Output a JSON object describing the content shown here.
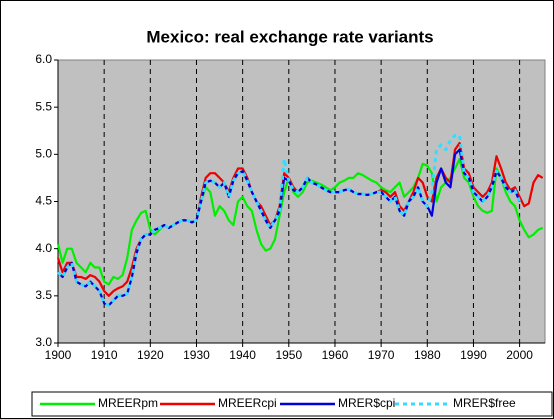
{
  "chart_data": {
    "type": "line",
    "title": "Mexico: real exchange rate variants",
    "x": [
      1900,
      1901,
      1902,
      1903,
      1904,
      1905,
      1906,
      1907,
      1908,
      1909,
      1910,
      1911,
      1912,
      1913,
      1914,
      1915,
      1916,
      1917,
      1918,
      1919,
      1920,
      1921,
      1922,
      1923,
      1924,
      1925,
      1926,
      1927,
      1928,
      1929,
      1930,
      1931,
      1932,
      1933,
      1934,
      1935,
      1936,
      1937,
      1938,
      1939,
      1940,
      1941,
      1942,
      1943,
      1944,
      1945,
      1946,
      1947,
      1948,
      1949,
      1950,
      1951,
      1952,
      1953,
      1954,
      1955,
      1956,
      1957,
      1958,
      1959,
      1960,
      1961,
      1962,
      1963,
      1964,
      1965,
      1966,
      1967,
      1968,
      1969,
      1970,
      1971,
      1972,
      1973,
      1974,
      1975,
      1976,
      1977,
      1978,
      1979,
      1980,
      1981,
      1982,
      1983,
      1984,
      1985,
      1986,
      1987,
      1988,
      1989,
      1990,
      1991,
      1992,
      1993,
      1994,
      1995,
      1996,
      1997,
      1998,
      1999,
      2000,
      2001,
      2002,
      2003,
      2004,
      2005
    ],
    "series": [
      {
        "name": "MREERpm",
        "color": "#00ee00",
        "dashed": false,
        "values": [
          4.05,
          3.85,
          4.0,
          4.0,
          3.85,
          3.8,
          3.75,
          3.85,
          3.8,
          3.8,
          3.65,
          3.62,
          3.7,
          3.68,
          3.72,
          3.9,
          4.2,
          4.3,
          4.38,
          4.4,
          4.2,
          4.15,
          4.2,
          4.25,
          4.22,
          4.25,
          4.28,
          4.3,
          4.3,
          4.28,
          4.3,
          4.5,
          4.65,
          4.6,
          4.35,
          4.45,
          4.4,
          4.3,
          4.25,
          4.5,
          4.55,
          4.45,
          4.4,
          4.2,
          4.05,
          3.98,
          4.0,
          4.1,
          4.35,
          4.6,
          4.75,
          4.6,
          4.55,
          4.6,
          4.7,
          4.72,
          4.7,
          4.68,
          4.65,
          4.62,
          4.65,
          4.7,
          4.72,
          4.75,
          4.75,
          4.8,
          4.78,
          4.75,
          4.72,
          4.7,
          4.65,
          4.62,
          4.6,
          4.65,
          4.7,
          4.55,
          4.6,
          4.65,
          4.75,
          4.9,
          4.88,
          4.8,
          4.5,
          4.65,
          4.7,
          4.75,
          4.85,
          4.95,
          4.75,
          4.7,
          4.55,
          4.45,
          4.4,
          4.38,
          4.4,
          4.85,
          4.75,
          4.6,
          4.5,
          4.45,
          4.3,
          4.2,
          4.12,
          4.15,
          4.2,
          4.22
        ]
      },
      {
        "name": "MREERcpi",
        "color": "#ee0000",
        "dashed": false,
        "values": [
          3.9,
          3.75,
          3.85,
          3.85,
          3.7,
          3.7,
          3.68,
          3.72,
          3.7,
          3.65,
          3.55,
          3.5,
          3.55,
          3.58,
          3.6,
          3.65,
          3.8,
          4.0,
          4.1,
          4.15,
          4.15,
          4.2,
          4.22,
          4.25,
          4.22,
          4.25,
          4.28,
          4.3,
          4.3,
          4.28,
          4.3,
          4.55,
          4.75,
          4.8,
          4.8,
          4.75,
          4.7,
          4.6,
          4.75,
          4.85,
          4.85,
          4.75,
          4.6,
          4.5,
          4.45,
          4.35,
          4.25,
          4.3,
          4.45,
          4.8,
          4.75,
          4.65,
          4.6,
          4.65,
          4.75,
          4.7,
          4.68,
          4.65,
          4.62,
          4.6,
          4.6,
          4.6,
          4.62,
          4.63,
          4.6,
          4.58,
          4.58,
          4.57,
          4.58,
          4.6,
          4.62,
          4.6,
          4.55,
          4.6,
          4.45,
          4.4,
          4.5,
          4.6,
          4.75,
          4.7,
          4.55,
          4.5,
          4.75,
          4.85,
          4.75,
          4.7,
          5.05,
          5.12,
          4.85,
          4.8,
          4.65,
          4.6,
          4.55,
          4.6,
          4.7,
          4.98,
          4.85,
          4.7,
          4.62,
          4.65,
          4.55,
          4.45,
          4.48,
          4.7,
          4.78,
          4.75
        ]
      },
      {
        "name": "MRER$cpi",
        "color": "#0000dd",
        "dashed": false,
        "values": [
          3.75,
          3.7,
          3.8,
          3.85,
          3.65,
          3.62,
          3.6,
          3.65,
          3.6,
          3.55,
          3.42,
          3.4,
          3.45,
          3.5,
          3.5,
          3.52,
          3.7,
          3.95,
          4.1,
          4.15,
          4.15,
          4.2,
          4.22,
          4.25,
          4.22,
          4.25,
          4.28,
          4.3,
          4.3,
          4.28,
          4.3,
          4.5,
          4.7,
          4.72,
          4.7,
          4.65,
          4.7,
          4.55,
          4.72,
          4.8,
          4.82,
          4.72,
          4.6,
          4.5,
          4.4,
          4.3,
          4.22,
          4.3,
          4.4,
          4.75,
          4.72,
          4.62,
          4.6,
          4.65,
          4.75,
          4.7,
          4.68,
          4.65,
          4.62,
          4.6,
          4.6,
          4.6,
          4.62,
          4.63,
          4.6,
          4.58,
          4.58,
          4.57,
          4.58,
          4.6,
          4.6,
          4.55,
          4.5,
          4.55,
          4.4,
          4.35,
          4.5,
          4.55,
          4.65,
          4.5,
          4.45,
          4.35,
          4.7,
          4.85,
          4.7,
          4.65,
          5.0,
          5.05,
          4.8,
          4.75,
          4.6,
          4.55,
          4.5,
          4.55,
          4.65,
          4.82,
          4.75,
          4.65,
          4.6,
          4.62,
          4.5,
          null,
          null,
          null,
          null,
          null
        ]
      },
      {
        "name": "MRER$free",
        "color": "#33ddff",
        "dashed": true,
        "values": [
          3.75,
          3.7,
          3.8,
          3.85,
          3.65,
          3.62,
          3.6,
          3.65,
          3.6,
          3.55,
          3.42,
          3.4,
          3.45,
          3.5,
          3.5,
          3.52,
          3.7,
          3.95,
          4.1,
          4.15,
          4.15,
          4.2,
          4.22,
          4.25,
          4.22,
          4.25,
          4.28,
          4.3,
          4.3,
          4.28,
          4.3,
          4.5,
          4.7,
          4.72,
          4.7,
          4.65,
          4.7,
          4.55,
          4.72,
          4.8,
          4.82,
          4.72,
          4.6,
          4.5,
          4.4,
          4.3,
          4.22,
          4.3,
          4.4,
          4.95,
          4.72,
          4.62,
          4.6,
          4.65,
          4.75,
          4.7,
          4.68,
          4.65,
          4.62,
          4.6,
          4.6,
          4.6,
          4.62,
          4.63,
          4.6,
          4.58,
          4.58,
          4.57,
          4.58,
          4.6,
          4.6,
          4.55,
          4.5,
          4.55,
          4.4,
          4.35,
          4.5,
          4.55,
          4.65,
          4.5,
          4.45,
          4.6,
          5.05,
          5.1,
          5.05,
          5.15,
          5.2,
          5.2,
          4.8,
          4.75,
          4.6,
          4.55,
          4.5,
          4.55,
          4.65,
          4.82,
          4.75,
          4.65,
          4.6,
          4.62,
          4.5,
          null,
          null,
          null,
          null,
          null
        ]
      }
    ],
    "xlim": [
      1900,
      2005.5
    ],
    "xticks": [
      1900,
      1910,
      1920,
      1930,
      1940,
      1950,
      1960,
      1970,
      1980,
      1990,
      2000
    ],
    "ylim": [
      3,
      6
    ],
    "yticks": [
      {
        "value": 3,
        "label": "3.0"
      },
      {
        "value": 3.5,
        "label": "3.5"
      },
      {
        "value": 4,
        "label": "4.0"
      },
      {
        "value": 4.5,
        "label": "4.5"
      },
      {
        "value": 5,
        "label": "5.0"
      },
      {
        "value": 5.5,
        "label": "5.5"
      },
      {
        "value": 6,
        "label": "6.0"
      }
    ],
    "grid": true,
    "legend": "bottom"
  }
}
